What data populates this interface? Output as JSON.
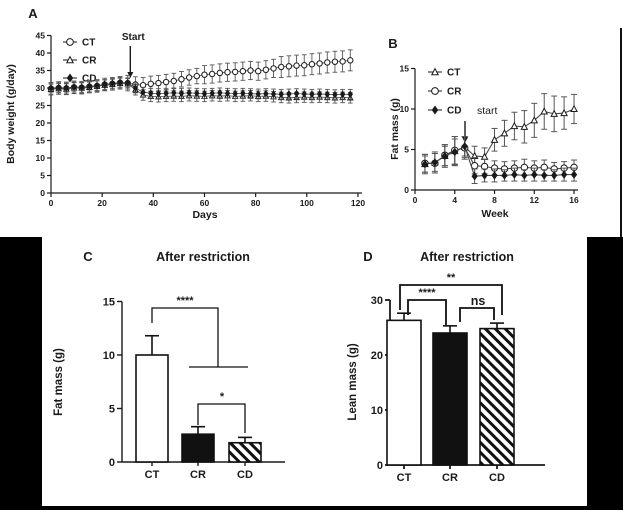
{
  "colors": {
    "foreground": "#1a1a1a",
    "background": "#ffffff",
    "frame": "#000000",
    "error_bar": "#555555",
    "line": "#4a4a4a"
  },
  "chart_data": [
    {
      "panel": "A",
      "type": "line",
      "title": "",
      "xlabel": "Days",
      "ylabel": "Body weight (g/day)",
      "xlim": [
        0,
        120
      ],
      "xticks": [
        0,
        20,
        40,
        60,
        80,
        100,
        120
      ],
      "ylim": [
        0,
        45
      ],
      "yticks": [
        0,
        5,
        10,
        15,
        20,
        25,
        30,
        35,
        40,
        45
      ],
      "grid": false,
      "legend_position": "top-left",
      "annotation": {
        "text": "Start",
        "x": 31
      },
      "x": [
        0,
        3,
        6,
        9,
        12,
        15,
        18,
        21,
        24,
        27,
        30,
        33,
        36,
        39,
        42,
        45,
        48,
        51,
        54,
        57,
        60,
        63,
        66,
        69,
        72,
        75,
        78,
        81,
        84,
        87,
        90,
        93,
        96,
        99,
        102,
        105,
        108,
        111,
        114,
        117
      ],
      "series": [
        {
          "name": "CT",
          "marker": "circle-open",
          "values": [
            29.8,
            30.0,
            29.9,
            30.2,
            30.1,
            30.4,
            30.6,
            31.0,
            31.2,
            31.5,
            31.4,
            31.0,
            30.8,
            31.2,
            31.4,
            31.7,
            32.0,
            32.5,
            33.0,
            33.4,
            33.8,
            34.0,
            34.3,
            34.5,
            34.6,
            34.8,
            35.0,
            34.8,
            35.2,
            35.6,
            36.0,
            36.2,
            36.4,
            36.5,
            36.8,
            37.0,
            37.3,
            37.5,
            37.6,
            37.9
          ],
          "errors": [
            1.8,
            1.8,
            1.8,
            1.8,
            1.8,
            1.8,
            1.8,
            1.8,
            1.8,
            1.8,
            2.2,
            2.2,
            2.2,
            2.2,
            2.2,
            2.2,
            2.2,
            2.2,
            2.2,
            2.2,
            2.6,
            2.6,
            2.6,
            2.6,
            2.6,
            2.6,
            2.6,
            2.6,
            2.6,
            2.6,
            3.0,
            3.0,
            3.0,
            3.0,
            3.0,
            3.0,
            3.0,
            3.0,
            3.0,
            3.0
          ]
        },
        {
          "name": "CR",
          "marker": "triangle-open",
          "values": [
            29.6,
            29.8,
            29.7,
            30.0,
            30.0,
            30.2,
            30.5,
            30.8,
            31.0,
            31.3,
            31.2,
            29.5,
            28.0,
            27.6,
            27.5,
            27.6,
            27.7,
            27.6,
            27.8,
            27.7,
            27.6,
            27.8,
            27.7,
            27.8,
            27.6,
            27.7,
            27.8,
            27.6,
            27.7,
            27.5,
            27.3,
            27.2,
            27.3,
            27.4,
            27.3,
            27.4,
            27.3,
            27.2,
            27.3,
            27.2
          ],
          "errors": 1.5
        },
        {
          "name": "CD",
          "marker": "diamond-filled",
          "values": [
            30.0,
            30.1,
            30.0,
            30.3,
            30.2,
            30.5,
            30.7,
            31.0,
            31.3,
            31.6,
            31.5,
            30.0,
            28.8,
            28.5,
            28.4,
            28.5,
            28.6,
            28.5,
            28.6,
            28.5,
            28.4,
            28.5,
            28.6,
            28.5,
            28.4,
            28.5,
            28.4,
            28.3,
            28.4,
            28.3,
            28.2,
            28.3,
            28.4,
            28.3,
            28.2,
            28.3,
            28.2,
            28.1,
            28.2,
            28.2
          ],
          "errors": 1.4
        }
      ]
    },
    {
      "panel": "B",
      "type": "line",
      "title": "",
      "xlabel": "Week",
      "ylabel": "Fat mass (g)",
      "xlim": [
        0,
        16
      ],
      "xticks": [
        0,
        4,
        8,
        12,
        16
      ],
      "ylim": [
        0,
        15
      ],
      "yticks": [
        0,
        5,
        10,
        15
      ],
      "grid": false,
      "legend_position": "top-left",
      "annotation": {
        "text": "start",
        "x": 5
      },
      "x": [
        1,
        2,
        3,
        4,
        5,
        6,
        7,
        8,
        9,
        10,
        11,
        12,
        13,
        14,
        15,
        16
      ],
      "series": [
        {
          "name": "CT",
          "marker": "triangle-open",
          "values": [
            3.2,
            3.4,
            4.2,
            4.8,
            5.3,
            4.2,
            4.1,
            6.2,
            7.0,
            7.9,
            7.8,
            8.6,
            9.7,
            9.4,
            9.5,
            10.0
          ],
          "errors": [
            1.2,
            1.3,
            1.4,
            1.8,
            1.3,
            1.2,
            1.1,
            1.4,
            1.6,
            1.7,
            2.0,
            2.1,
            2.2,
            2.2,
            2.0,
            1.8
          ]
        },
        {
          "name": "CR",
          "marker": "circle-open",
          "values": [
            3.3,
            3.3,
            4.3,
            4.9,
            5.2,
            3.0,
            2.9,
            2.7,
            2.6,
            2.7,
            2.8,
            2.7,
            2.8,
            2.6,
            2.7,
            2.8
          ],
          "errors": [
            1.1,
            1.2,
            1.3,
            1.7,
            1.4,
            1.0,
            0.9,
            0.9,
            0.9,
            0.9,
            1.0,
            0.9,
            0.9,
            0.8,
            0.8,
            0.9
          ]
        },
        {
          "name": "CD",
          "marker": "diamond-filled",
          "values": [
            3.2,
            3.4,
            4.2,
            4.7,
            5.4,
            1.7,
            1.8,
            1.8,
            1.8,
            1.9,
            1.8,
            1.9,
            1.8,
            1.8,
            1.9,
            1.9
          ],
          "errors": [
            1.0,
            1.1,
            1.2,
            1.6,
            1.2,
            0.9,
            0.8,
            0.8,
            0.7,
            0.8,
            0.7,
            0.8,
            0.7,
            0.7,
            0.8,
            0.8
          ]
        }
      ]
    },
    {
      "panel": "C",
      "type": "bar",
      "title": "After restriction",
      "ylabel": "Fat mass (g)",
      "ylim": [
        0,
        15
      ],
      "yticks": [
        0,
        5,
        10,
        15
      ],
      "categories": [
        "CT",
        "CR",
        "CD"
      ],
      "values": [
        10.0,
        2.6,
        1.8
      ],
      "errors": [
        1.8,
        0.7,
        0.5
      ],
      "bar_styles": [
        "white",
        "black",
        "hatch"
      ],
      "significance": [
        {
          "comparison": "CT vs CR+CD",
          "label": "****"
        },
        {
          "comparison": "CR vs CD",
          "label": "*"
        }
      ]
    },
    {
      "panel": "D",
      "type": "bar",
      "title": "After restriction",
      "ylabel": "Lean mass (g)",
      "ylim": [
        0,
        30
      ],
      "yticks": [
        0,
        10,
        20,
        30
      ],
      "categories": [
        "CT",
        "CR",
        "CD"
      ],
      "values": [
        26.3,
        24.0,
        24.8
      ],
      "errors": [
        1.3,
        1.3,
        1.0
      ],
      "bar_styles": [
        "white",
        "black",
        "hatch"
      ],
      "significance": [
        {
          "comparison": "CT vs CR",
          "label": "****"
        },
        {
          "comparison": "CR vs CD",
          "label": "ns"
        },
        {
          "comparison": "CT vs CD",
          "label": "**"
        }
      ]
    }
  ]
}
